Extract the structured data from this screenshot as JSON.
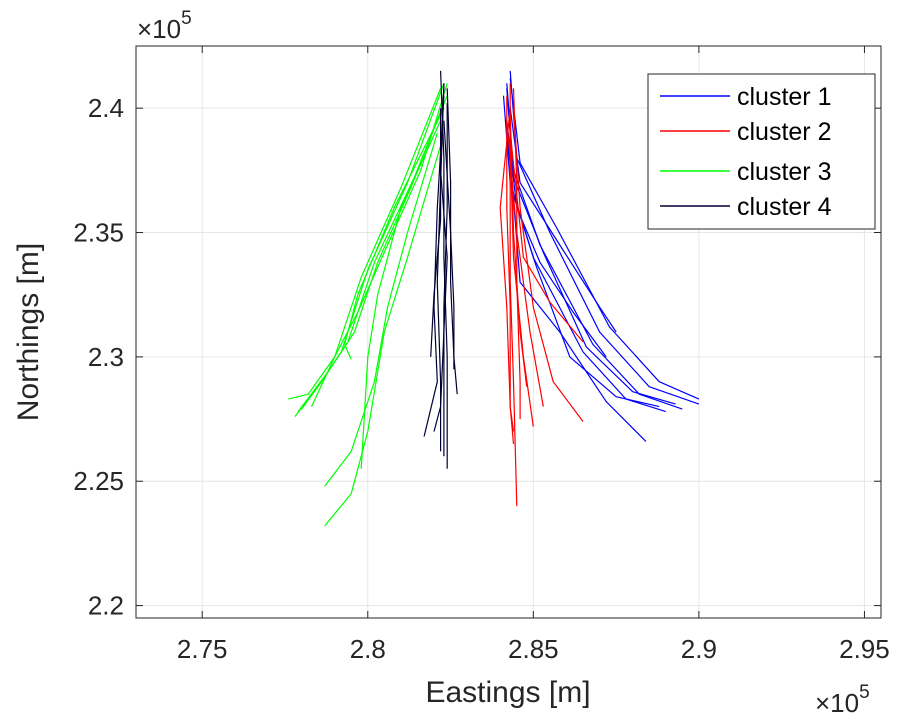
{
  "chart_data": {
    "type": "line",
    "title": "",
    "xlabel": "Eastings [m]",
    "ylabel": "Northings [m]",
    "x_multiplier": "×10",
    "x_multiplier_exp": "5",
    "y_multiplier": "×10",
    "y_multiplier_exp": "5",
    "xlim": [
      2.73,
      2.955
    ],
    "ylim": [
      2.195,
      2.425
    ],
    "xticks": [
      2.75,
      2.8,
      2.85,
      2.9,
      2.95
    ],
    "yticks": [
      2.2,
      2.25,
      2.3,
      2.35,
      2.4
    ],
    "xtick_labels": [
      "2.75",
      "2.8",
      "2.85",
      "2.9",
      "2.95"
    ],
    "ytick_labels": [
      "2.2",
      "2.25",
      "2.3",
      "2.35",
      "2.4"
    ],
    "grid": true,
    "legend_position": "top-right",
    "series": [
      {
        "name": "cluster 1",
        "color": "#0000ff",
        "lines": [
          [
            [
              2.843,
              2.415
            ],
            [
              2.845,
              2.38
            ],
            [
              2.855,
              2.35
            ],
            [
              2.87,
              2.31
            ],
            [
              2.885,
              2.288
            ],
            [
              2.9,
              2.281
            ]
          ],
          [
            [
              2.842,
              2.41
            ],
            [
              2.844,
              2.375
            ],
            [
              2.852,
              2.345
            ],
            [
              2.868,
              2.305
            ],
            [
              2.882,
              2.285
            ],
            [
              2.895,
              2.279
            ]
          ],
          [
            [
              2.841,
              2.405
            ],
            [
              2.843,
              2.37
            ],
            [
              2.85,
              2.34
            ],
            [
              2.865,
              2.302
            ],
            [
              2.878,
              2.283
            ],
            [
              2.89,
              2.278
            ]
          ],
          [
            [
              2.843,
              2.412
            ],
            [
              2.846,
              2.378
            ],
            [
              2.857,
              2.352
            ],
            [
              2.873,
              2.312
            ],
            [
              2.888,
              2.29
            ],
            [
              2.9,
              2.283
            ]
          ],
          [
            [
              2.842,
              2.408
            ],
            [
              2.844,
              2.372
            ],
            [
              2.853,
              2.342
            ],
            [
              2.866,
              2.304
            ],
            [
              2.88,
              2.286
            ],
            [
              2.893,
              2.281
            ]
          ],
          [
            [
              2.843,
              2.4
            ],
            [
              2.846,
              2.37
            ],
            [
              2.858,
              2.345
            ],
            [
              2.87,
              2.32
            ],
            [
              2.875,
              2.31
            ]
          ],
          [
            [
              2.842,
              2.395
            ],
            [
              2.845,
              2.36
            ],
            [
              2.852,
              2.338
            ],
            [
              2.862,
              2.318
            ],
            [
              2.872,
              2.3
            ]
          ],
          [
            [
              2.843,
              2.38
            ],
            [
              2.846,
              2.33
            ],
            [
              2.858,
              2.31
            ],
            [
              2.872,
              2.282
            ],
            [
              2.884,
              2.266
            ]
          ],
          [
            [
              2.842,
              2.39
            ],
            [
              2.844,
              2.365
            ],
            [
              2.851,
              2.336
            ],
            [
              2.861,
              2.3
            ],
            [
              2.875,
              2.284
            ],
            [
              2.888,
              2.28
            ]
          ]
        ]
      },
      {
        "name": "cluster 2",
        "color": "#ff0000",
        "lines": [
          [
            [
              2.843,
              2.41
            ],
            [
              2.843,
              2.37
            ],
            [
              2.843,
              2.33
            ],
            [
              2.844,
              2.29
            ],
            [
              2.845,
              2.24
            ]
          ],
          [
            [
              2.842,
              2.405
            ],
            [
              2.842,
              2.36
            ],
            [
              2.843,
              2.32
            ],
            [
              2.843,
              2.28
            ],
            [
              2.844,
              2.265
            ]
          ],
          [
            [
              2.844,
              2.408
            ],
            [
              2.845,
              2.37
            ],
            [
              2.845,
              2.33
            ],
            [
              2.846,
              2.29
            ],
            [
              2.846,
              2.275
            ]
          ],
          [
            [
              2.843,
              2.4
            ],
            [
              2.84,
              2.36
            ],
            [
              2.842,
              2.32
            ],
            [
              2.843,
              2.28
            ],
            [
              2.844,
              2.27
            ]
          ],
          [
            [
              2.844,
              2.4
            ],
            [
              2.846,
              2.36
            ],
            [
              2.85,
              2.32
            ],
            [
              2.856,
              2.29
            ],
            [
              2.865,
              2.274
            ]
          ],
          [
            [
              2.843,
              2.39
            ],
            [
              2.847,
              2.34
            ],
            [
              2.855,
              2.322
            ],
            [
              2.865,
              2.306
            ]
          ],
          [
            [
              2.842,
              2.395
            ],
            [
              2.845,
              2.35
            ],
            [
              2.849,
              2.31
            ],
            [
              2.853,
              2.28
            ]
          ],
          [
            [
              2.843,
              2.385
            ],
            [
              2.844,
              2.34
            ],
            [
              2.847,
              2.3
            ],
            [
              2.85,
              2.272
            ]
          ],
          [
            [
              2.843,
              2.398
            ],
            [
              2.844,
              2.35
            ],
            [
              2.846,
              2.31
            ],
            [
              2.848,
              2.288
            ]
          ]
        ]
      },
      {
        "name": "cluster 3",
        "color": "#00ff00",
        "lines": [
          [
            [
              2.823,
              2.41
            ],
            [
              2.812,
              2.37
            ],
            [
              2.8,
              2.335
            ],
            [
              2.792,
              2.302
            ],
            [
              2.785,
              2.288
            ],
            [
              2.778,
              2.276
            ]
          ],
          [
            [
              2.822,
              2.408
            ],
            [
              2.81,
              2.368
            ],
            [
              2.798,
              2.332
            ],
            [
              2.79,
              2.3
            ],
            [
              2.782,
              2.285
            ],
            [
              2.776,
              2.283
            ]
          ],
          [
            [
              2.824,
              2.405
            ],
            [
              2.814,
              2.372
            ],
            [
              2.802,
              2.338
            ],
            [
              2.794,
              2.306
            ],
            [
              2.786,
              2.29
            ],
            [
              2.78,
              2.279
            ]
          ],
          [
            [
              2.823,
              2.4
            ],
            [
              2.808,
              2.36
            ],
            [
              2.797,
              2.325
            ],
            [
              2.793,
              2.305
            ],
            [
              2.795,
              2.299
            ]
          ],
          [
            [
              2.822,
              2.395
            ],
            [
              2.81,
              2.36
            ],
            [
              2.803,
              2.325
            ],
            [
              2.8,
              2.3
            ],
            [
              2.798,
              2.255
            ]
          ],
          [
            [
              2.821,
              2.39
            ],
            [
              2.812,
              2.35
            ],
            [
              2.806,
              2.32
            ],
            [
              2.802,
              2.29
            ],
            [
              2.795,
              2.262
            ],
            [
              2.787,
              2.248
            ]
          ],
          [
            [
              2.822,
              2.385
            ],
            [
              2.812,
              2.34
            ],
            [
              2.805,
              2.31
            ],
            [
              2.8,
              2.27
            ],
            [
              2.795,
              2.245
            ],
            [
              2.787,
              2.232
            ]
          ],
          [
            [
              2.824,
              2.41
            ],
            [
              2.816,
              2.375
            ],
            [
              2.806,
              2.345
            ],
            [
              2.797,
              2.318
            ],
            [
              2.79,
              2.3
            ],
            [
              2.783,
              2.28
            ]
          ],
          [
            [
              2.823,
              2.402
            ],
            [
              2.813,
              2.368
            ],
            [
              2.803,
              2.338
            ],
            [
              2.796,
              2.31
            ],
            [
              2.788,
              2.294
            ],
            [
              2.779,
              2.278
            ]
          ]
        ]
      },
      {
        "name": "cluster 4",
        "color": "#000033",
        "lines": [
          [
            [
              2.822,
              2.415
            ],
            [
              2.823,
              2.38
            ],
            [
              2.823,
              2.34
            ],
            [
              2.824,
              2.3
            ],
            [
              2.824,
              2.255
            ]
          ],
          [
            [
              2.823,
              2.41
            ],
            [
              2.822,
              2.37
            ],
            [
              2.821,
              2.33
            ],
            [
              2.822,
              2.29
            ],
            [
              2.822,
              2.262
            ]
          ],
          [
            [
              2.824,
              2.408
            ],
            [
              2.825,
              2.37
            ],
            [
              2.825,
              2.33
            ],
            [
              2.826,
              2.3
            ],
            [
              2.827,
              2.285
            ]
          ],
          [
            [
              2.823,
              2.405
            ],
            [
              2.821,
              2.36
            ],
            [
              2.82,
              2.32
            ],
            [
              2.821,
              2.29
            ],
            [
              2.817,
              2.268
            ]
          ],
          [
            [
              2.824,
              2.402
            ],
            [
              2.824,
              2.36
            ],
            [
              2.823,
              2.32
            ],
            [
              2.823,
              2.28
            ],
            [
              2.823,
              2.26
            ]
          ],
          [
            [
              2.822,
              2.4
            ],
            [
              2.822,
              2.355
            ],
            [
              2.82,
              2.325
            ],
            [
              2.819,
              2.3
            ]
          ],
          [
            [
              2.823,
              2.395
            ],
            [
              2.825,
              2.35
            ],
            [
              2.826,
              2.32
            ],
            [
              2.826,
              2.295
            ]
          ],
          [
            [
              2.823,
              2.41
            ],
            [
              2.822,
              2.375
            ],
            [
              2.824,
              2.34
            ],
            [
              2.823,
              2.31
            ],
            [
              2.822,
              2.28
            ],
            [
              2.82,
              2.27
            ]
          ]
        ]
      }
    ]
  }
}
